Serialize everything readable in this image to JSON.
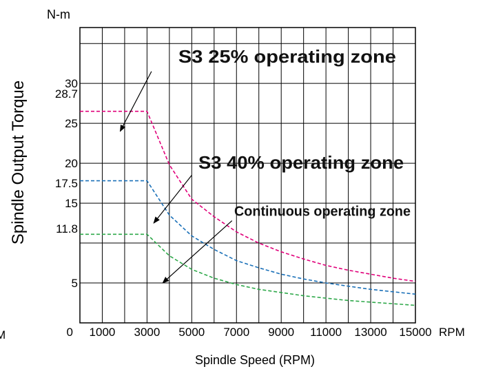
{
  "chart_data": {
    "type": "line",
    "ylabel": "Spindle Output Torque",
    "xlabel": "Spindle Speed (RPM)",
    "y_unit": "N-m",
    "x_unit": "RPM",
    "left_edge_text": "M",
    "xlim": [
      0,
      15000
    ],
    "ylim": [
      0,
      37
    ],
    "x_ticks": [
      {
        "value": 0,
        "label": "0"
      },
      {
        "value": 1000,
        "label": "1000"
      },
      {
        "value": 3000,
        "label": "3000"
      },
      {
        "value": 5000,
        "label": "5000"
      },
      {
        "value": 7000,
        "label": "7000"
      },
      {
        "value": 9000,
        "label": "9000"
      },
      {
        "value": 11000,
        "label": "11000"
      },
      {
        "value": 13000,
        "label": "13000"
      },
      {
        "value": 15000,
        "label": "15000"
      }
    ],
    "y_ticks": [
      {
        "value": 5,
        "label": "5"
      },
      {
        "value": 11.8,
        "label": "11.8"
      },
      {
        "value": 15,
        "label": "15"
      },
      {
        "value": 17.5,
        "label": "17.5"
      },
      {
        "value": 20,
        "label": "20"
      },
      {
        "value": 25,
        "label": "25"
      },
      {
        "value": 28.7,
        "label": "28.7"
      },
      {
        "value": 30,
        "label": "30"
      }
    ],
    "grid": true,
    "series": [
      {
        "name": "S3 25% operating zone",
        "color": "#e0007a",
        "dash": "dashed",
        "x": [
          0,
          3000,
          4000,
          5000,
          6000,
          7000,
          8000,
          9000,
          10000,
          11000,
          12000,
          13000,
          14000,
          15000
        ],
        "y": [
          26.5,
          26.5,
          19.8,
          15.5,
          13.3,
          11.4,
          10.0,
          8.9,
          8.0,
          7.2,
          6.6,
          6.1,
          5.6,
          5.2
        ]
      },
      {
        "name": "S3 40% operating zone",
        "color": "#1a70b8",
        "dash": "dashed",
        "x": [
          0,
          3000,
          4000,
          5000,
          6000,
          7000,
          8000,
          9000,
          10000,
          11000,
          12000,
          13000,
          14000,
          15000
        ],
        "y": [
          17.8,
          17.8,
          13.5,
          10.9,
          9.2,
          7.8,
          6.9,
          6.1,
          5.5,
          5.0,
          4.6,
          4.2,
          3.9,
          3.6
        ]
      },
      {
        "name": "Continuous operating zone",
        "color": "#2ea84a",
        "dash": "dashed",
        "x": [
          0,
          3000,
          4000,
          5000,
          6000,
          7000,
          8000,
          9000,
          10000,
          11000,
          12000,
          13000,
          14000,
          15000
        ],
        "y": [
          11.1,
          11.1,
          8.4,
          6.7,
          5.6,
          4.8,
          4.2,
          3.8,
          3.4,
          3.1,
          2.8,
          2.6,
          2.4,
          2.2
        ]
      }
    ],
    "annotations": [
      {
        "text": "S3 25% operating zone",
        "x": 4400,
        "y": 32.6,
        "arrow_from": [
          3200,
          31.5
        ],
        "arrow_to": [
          1800,
          24.0
        ]
      },
      {
        "text": "S3 40% operating zone",
        "x": 5300,
        "y": 19.3,
        "arrow_from": [
          5000,
          18.5
        ],
        "arrow_to": [
          3300,
          12.5
        ]
      },
      {
        "text": "Continuous operating zone",
        "x": 6900,
        "y": 13.4,
        "arrow_from": [
          6800,
          12.8
        ],
        "arrow_to": [
          3700,
          5.0
        ]
      }
    ]
  }
}
